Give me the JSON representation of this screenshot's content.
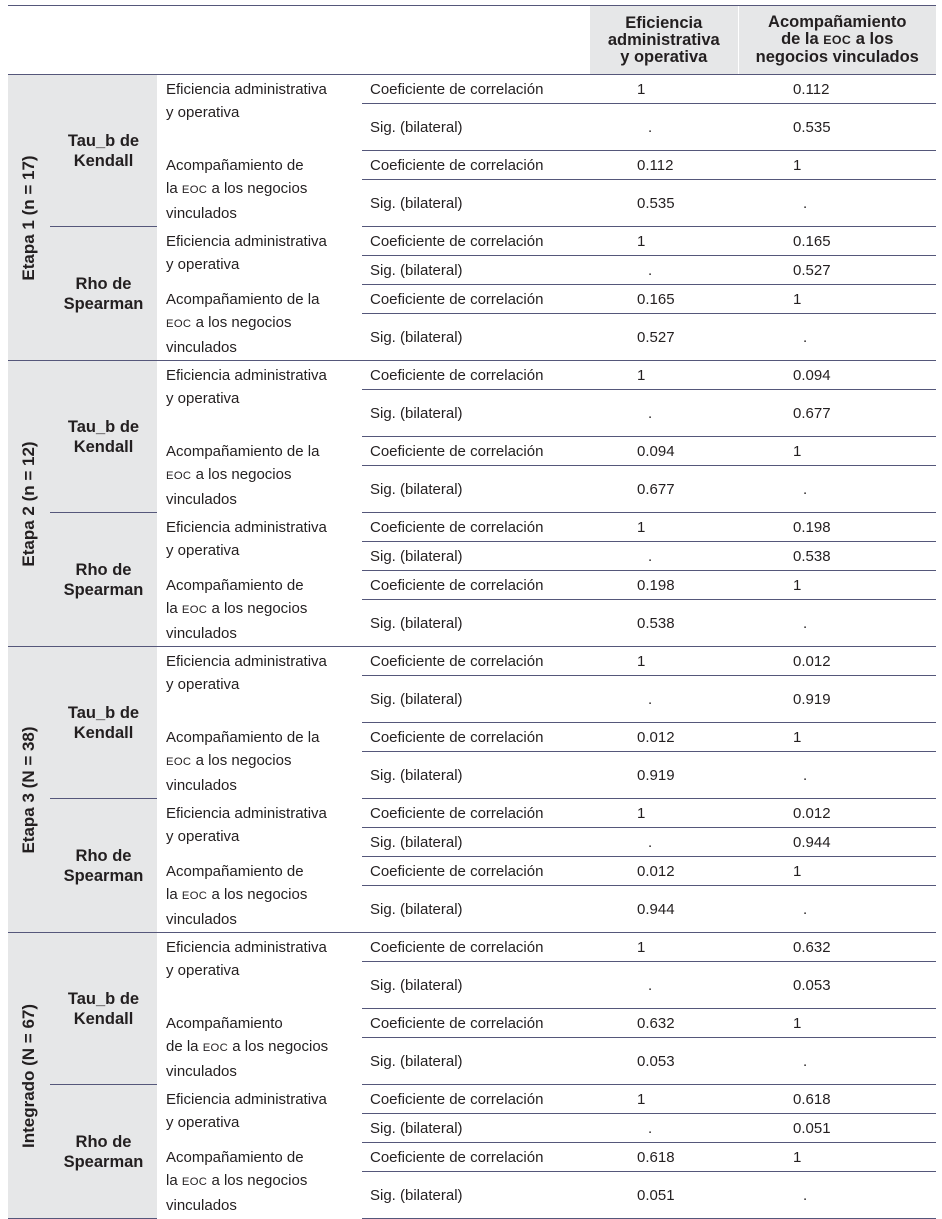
{
  "header": {
    "col1_line1": "Eficiencia",
    "col1_line2": "administrativa",
    "col1_line3": "y operativa",
    "col2_line1": "Acompañamiento",
    "col2_line2a": "de la",
    "col2_eoc": "EOC",
    "col2_line2b": "a los",
    "col2_line3": "negocios vinculados"
  },
  "labels": {
    "coef": "Coeficiente de correlación",
    "sig": "Sig. (bilateral)",
    "var1_line1": "Eficiencia administrativa",
    "var1_line2": "y operativa",
    "acomp_full": "Acompañamiento",
    "acomp_de": "Acompañamiento de",
    "acomp_de_la": "Acompañamiento de la",
    "de_la": "de la",
    "la": "la",
    "eoc": "EOC",
    "a_los_negocios": "a los negocios",
    "negocios_vinculados": "a los negocios",
    "vinculados": "vinculados",
    "tau_line1": "Tau_b de",
    "tau_line2": "Kendall",
    "rho_line1": "Rho de",
    "rho_line2": "Spearman"
  },
  "groups": [
    {
      "name": "Etapa 1 (n = 17)",
      "tau": {
        "r11": "1",
        "r12": "0.112",
        "s11": ".",
        "s12": "0.535",
        "r21": "0.112",
        "r22": "1",
        "s21": "0.535",
        "s22": "."
      },
      "rho": {
        "r11": "1",
        "r12": "0.165",
        "s11": ".",
        "s12": "0.527",
        "r21": "0.165",
        "r22": "1",
        "s21": "0.527",
        "s22": "."
      }
    },
    {
      "name": "Etapa 2 (n = 12)",
      "tau": {
        "r11": "1",
        "r12": "0.094",
        "s11": ".",
        "s12": "0.677",
        "r21": "0.094",
        "r22": "1",
        "s21": "0.677",
        "s22": "."
      },
      "rho": {
        "r11": "1",
        "r12": "0.198",
        "s11": ".",
        "s12": "0.538",
        "r21": "0.198",
        "r22": "1",
        "s21": "0.538",
        "s22": "."
      }
    },
    {
      "name": "Etapa 3 (N = 38)",
      "tau": {
        "r11": "1",
        "r12": "0.012",
        "s11": ".",
        "s12": "0.919",
        "r21": "0.012",
        "r22": "1",
        "s21": "0.919",
        "s22": "."
      },
      "rho": {
        "r11": "1",
        "r12": "0.012",
        "s11": ".",
        "s12": "0.944",
        "r21": "0.012",
        "r22": "1",
        "s21": "0.944",
        "s22": "."
      }
    },
    {
      "name": "Integrado (N = 67)",
      "tau": {
        "r11": "1",
        "r12": "0.632",
        "s11": ".",
        "s12": "0.053",
        "r21": "0.632",
        "r22": "1",
        "s21": "0.053",
        "s22": "."
      },
      "rho": {
        "r11": "1",
        "r12": "0.618",
        "s11": ".",
        "s12": "0.051",
        "r21": "0.618",
        "r22": "1",
        "s21": "0.051",
        "s22": "."
      }
    }
  ]
}
